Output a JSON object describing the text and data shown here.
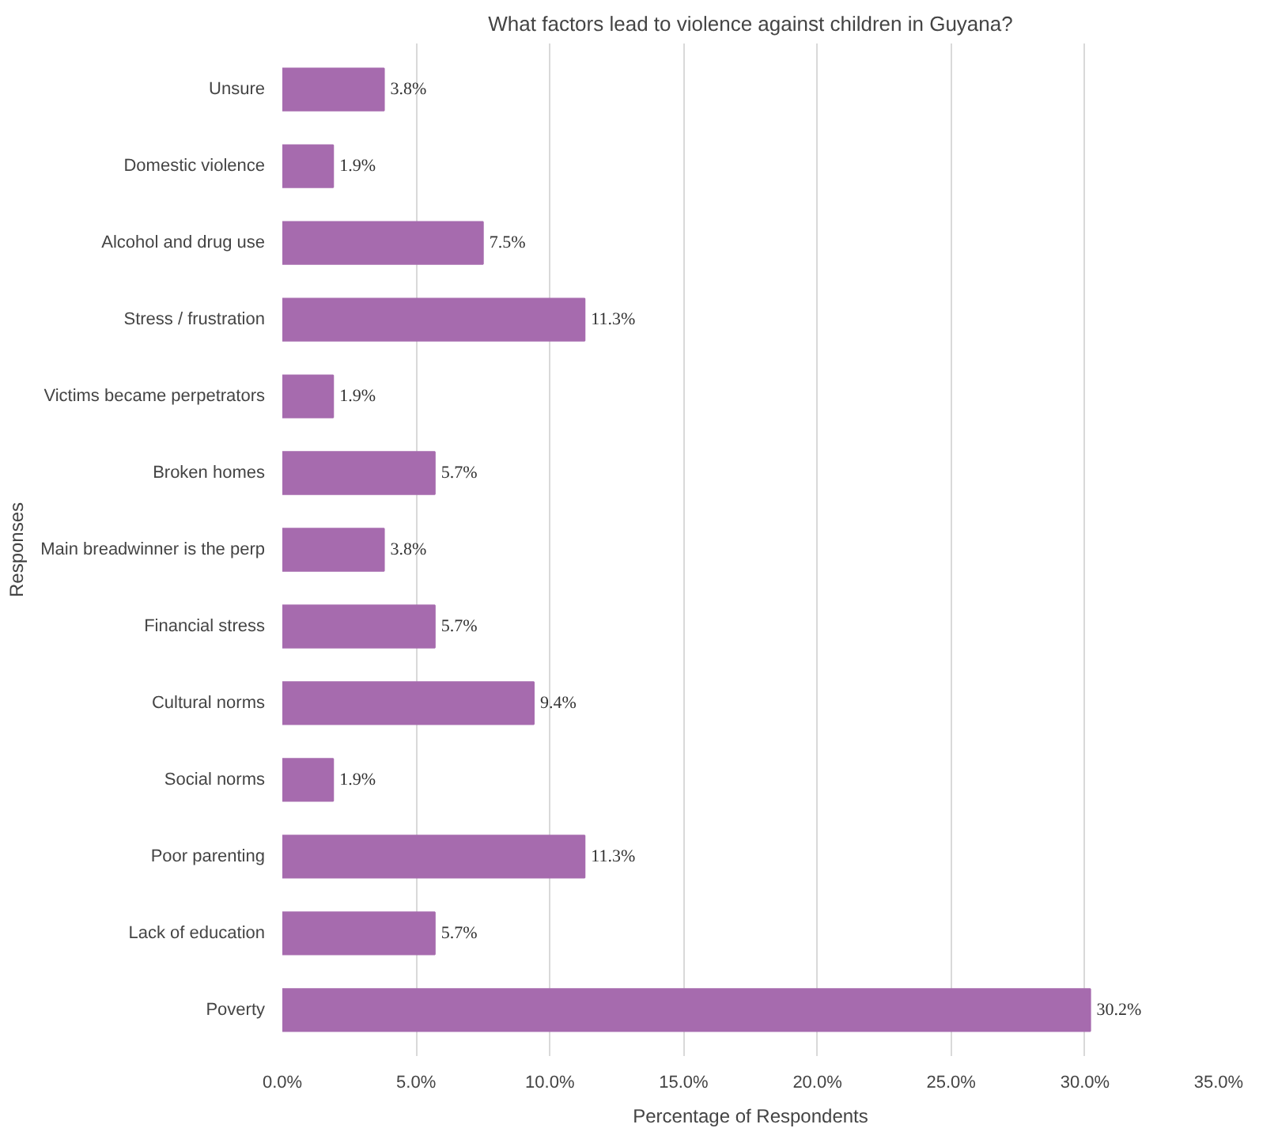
{
  "chart_data": {
    "type": "bar",
    "orientation": "horizontal",
    "title": "What factors lead to violence against children in Guyana?",
    "xlabel": "Percentage of Respondents",
    "ylabel": "Responses",
    "categories": [
      "Unsure",
      "Domestic violence",
      "Alcohol and drug use",
      "Stress / frustration",
      "Victims became perpetrators",
      "Broken homes",
      "Main breadwinner is the perp",
      "Financial stress",
      "Cultural norms",
      "Social norms",
      "Poor parenting",
      "Lack of education",
      "Poverty"
    ],
    "values": [
      3.8,
      1.9,
      7.5,
      11.3,
      1.9,
      5.7,
      3.8,
      5.7,
      9.4,
      1.9,
      11.3,
      5.7,
      30.2
    ],
    "value_labels": [
      "3.8%",
      "1.9%",
      "7.5%",
      "11.3%",
      "1.9%",
      "5.7%",
      "3.8%",
      "5.7%",
      "9.4%",
      "1.9%",
      "11.3%",
      "5.7%",
      "30.2%"
    ],
    "color": "#a66bae",
    "xlim": [
      0,
      35
    ],
    "xticks": [
      {
        "value": 0,
        "label": "0.0%"
      },
      {
        "value": 5,
        "label": "5.0%"
      },
      {
        "value": 10,
        "label": "10.0%"
      },
      {
        "value": 15,
        "label": "15.0%"
      },
      {
        "value": 20,
        "label": "20.0%"
      },
      {
        "value": 25,
        "label": "25.0%"
      },
      {
        "value": 30,
        "label": "30.0%"
      },
      {
        "value": 35,
        "label": "35.0%"
      }
    ],
    "grid": "x"
  }
}
